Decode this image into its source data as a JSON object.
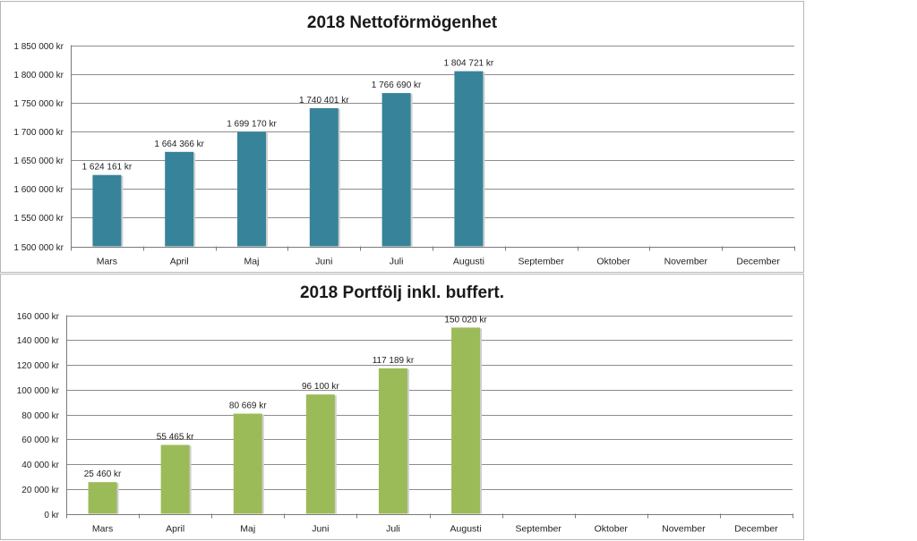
{
  "chart_data": [
    {
      "type": "bar",
      "title": "2018 Nettoförmögenhet",
      "categories": [
        "Mars",
        "April",
        "Maj",
        "Juni",
        "Juli",
        "Augusti",
        "September",
        "Oktober",
        "November",
        "December"
      ],
      "values": [
        1624161,
        1664366,
        1699170,
        1740401,
        1766690,
        1804721,
        null,
        null,
        null,
        null
      ],
      "data_labels": [
        "1 624 161 kr",
        "1 664 366 kr",
        "1 699 170 kr",
        "1 740 401 kr",
        "1 766 690 kr",
        "1 804 721 kr",
        "",
        "",
        "",
        ""
      ],
      "ylim": [
        1500000,
        1850000
      ],
      "yticks": [
        1500000,
        1550000,
        1600000,
        1650000,
        1700000,
        1750000,
        1800000,
        1850000
      ],
      "ytick_labels": [
        "1 500 000 kr",
        "1 550 000 kr",
        "1 600 000 kr",
        "1 650 000 kr",
        "1 700 000 kr",
        "1 750 000 kr",
        "1 800 000 kr",
        "1 850 000 kr"
      ],
      "grid": true,
      "legend": "none",
      "bar_color": "#37849a"
    },
    {
      "type": "bar",
      "title": "2018 Portfölj inkl. buffert.",
      "categories": [
        "Mars",
        "April",
        "Maj",
        "Juni",
        "Juli",
        "Augusti",
        "September",
        "Oktober",
        "November",
        "December"
      ],
      "values": [
        25460,
        55465,
        80669,
        96100,
        117189,
        150020,
        null,
        null,
        null,
        null
      ],
      "data_labels": [
        "25 460 kr",
        "55 465 kr",
        "80 669 kr",
        "96 100 kr",
        "117 189 kr",
        "150 020 kr",
        "",
        "",
        "",
        ""
      ],
      "ylim": [
        0,
        160000
      ],
      "yticks": [
        0,
        20000,
        40000,
        60000,
        80000,
        100000,
        120000,
        140000,
        160000
      ],
      "ytick_labels": [
        "0 kr",
        "20 000 kr",
        "40 000 kr",
        "60 000 kr",
        "80 000 kr",
        "100 000 kr",
        "120 000 kr",
        "140 000 kr",
        "160 000 kr"
      ],
      "grid": true,
      "legend": "none",
      "bar_color": "#9bbb59"
    }
  ]
}
